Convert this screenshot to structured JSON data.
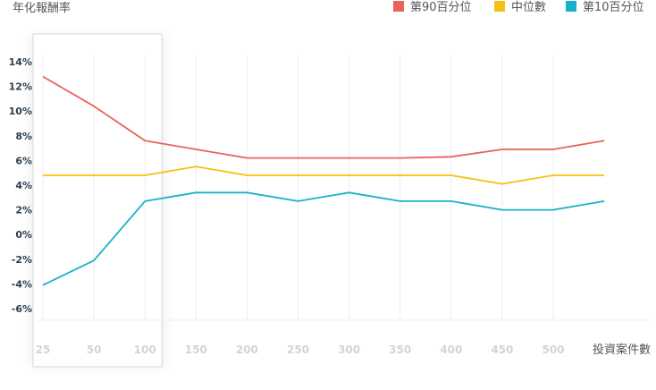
{
  "chart_data": {
    "type": "line",
    "ylabel": "年化報酬率",
    "xlabel": "投資案件數",
    "categories": [
      "25",
      "50",
      "100",
      "150",
      "200",
      "250",
      "300",
      "350",
      "400",
      "450",
      "500",
      ""
    ],
    "ytick_labels": [
      "14%",
      "12%",
      "10%",
      "8%",
      "6%",
      "4%",
      "2%",
      "0%",
      "-2%",
      "-4%",
      "-6%"
    ],
    "ylim": [
      -7,
      14
    ],
    "grid": true,
    "legend_position": "top-right",
    "highlight_band": [
      "25",
      "100"
    ],
    "series": [
      {
        "name": "第90百分位",
        "color": "#e8635a",
        "values": [
          12.8,
          10.4,
          7.6,
          6.9,
          6.2,
          6.2,
          6.2,
          6.2,
          6.3,
          6.9,
          6.9,
          7.6
        ]
      },
      {
        "name": "中位數",
        "color": "#f5c014",
        "values": [
          4.8,
          4.8,
          4.8,
          5.5,
          4.8,
          4.8,
          4.8,
          4.8,
          4.8,
          4.1,
          4.8,
          4.8
        ]
      },
      {
        "name": "第10百分位",
        "color": "#1ab0c9",
        "values": [
          -4.1,
          -2.1,
          2.7,
          3.4,
          3.4,
          2.7,
          3.4,
          2.7,
          2.7,
          2.0,
          2.0,
          2.7
        ]
      }
    ]
  }
}
